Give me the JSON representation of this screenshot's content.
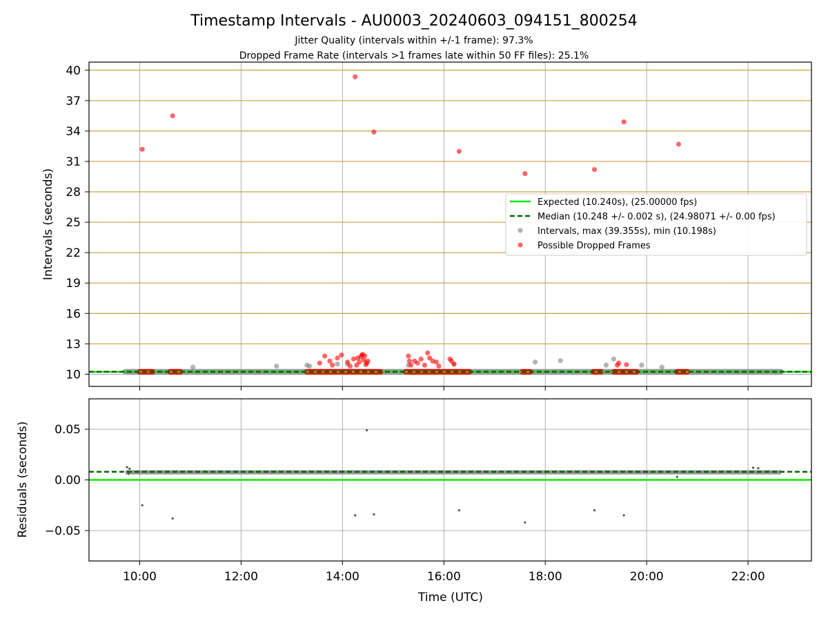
{
  "figure": {
    "title": "Timestamp Intervals - AU0003_20240603_094151_800254",
    "subtitle_1": "Jitter Quality (intervals within +/-1 frame): 97.3%",
    "subtitle_2": "Dropped Frame Rate (intervals >1 frames late within 50 FF files): 25.1%"
  },
  "colors": {
    "expected": "#00ee00",
    "median": "#006400",
    "intervals": "#808080",
    "dropped": "#ff0000",
    "hgrid_top": "#c8a040",
    "grid": "#b0b0b0"
  },
  "chart_data": [
    {
      "type": "scatter",
      "ylabel": "Intervals (seconds)",
      "xlim": [
        9.0,
        23.25
      ],
      "ylim": [
        8.8,
        40.8
      ],
      "yticks": [
        10,
        13,
        16,
        19,
        22,
        25,
        28,
        31,
        34,
        37,
        40
      ],
      "ytick_labels": [
        "10",
        "13",
        "16",
        "19",
        "22",
        "25",
        "28",
        "31",
        "34",
        "37",
        "40"
      ],
      "xgrid": true,
      "ygrid": true,
      "legend_position": "center-right",
      "expected_line": {
        "name": "Expected (10.240s), (25.00000 fps)",
        "y": 10.24
      },
      "median_line": {
        "name": "Median (10.248 +/- 0.002 s), (24.98071 +/- 0.00 fps)",
        "y": 10.248
      },
      "intervals_series": {
        "name": "Intervals, max (39.355s), min (10.198s)",
        "baseline_range": [
          9.72,
          22.65
        ],
        "baseline_y": 10.25,
        "points": [
          [
            11.05,
            10.7
          ],
          [
            12.7,
            10.8
          ],
          [
            13.3,
            10.9
          ],
          [
            13.35,
            10.8
          ],
          [
            13.9,
            11.0
          ],
          [
            14.1,
            11.0
          ],
          [
            15.3,
            10.9
          ],
          [
            16.2,
            11.0
          ],
          [
            17.8,
            11.2
          ],
          [
            18.3,
            11.35
          ],
          [
            19.2,
            10.9
          ],
          [
            19.35,
            11.5
          ],
          [
            19.9,
            10.9
          ],
          [
            20.3,
            10.7
          ]
        ]
      },
      "dropped_series": {
        "name": "Possible Dropped Frames",
        "points": [
          [
            10.05,
            32.2
          ],
          [
            10.65,
            35.5
          ],
          [
            14.25,
            39.35
          ],
          [
            14.62,
            33.9
          ],
          [
            16.3,
            32.0
          ],
          [
            17.6,
            29.8
          ],
          [
            18.97,
            30.2
          ],
          [
            19.55,
            34.9
          ],
          [
            20.63,
            32.7
          ],
          [
            13.55,
            11.1
          ],
          [
            13.65,
            11.8
          ],
          [
            13.75,
            11.3
          ],
          [
            13.8,
            10.9
          ],
          [
            13.9,
            11.6
          ],
          [
            13.98,
            11.9
          ],
          [
            14.1,
            11.2
          ],
          [
            14.15,
            10.8
          ],
          [
            14.22,
            11.5
          ],
          [
            14.28,
            10.9
          ],
          [
            14.3,
            11.6
          ],
          [
            14.33,
            11.2
          ],
          [
            14.36,
            11.7
          ],
          [
            14.38,
            11.9
          ],
          [
            14.4,
            11.95
          ],
          [
            14.42,
            11.4
          ],
          [
            14.44,
            11.8
          ],
          [
            14.46,
            10.95
          ],
          [
            14.48,
            11.1
          ],
          [
            14.5,
            11.3
          ],
          [
            15.3,
            11.8
          ],
          [
            15.32,
            11.3
          ],
          [
            15.35,
            10.9
          ],
          [
            15.42,
            11.3
          ],
          [
            15.48,
            11.1
          ],
          [
            15.55,
            11.5
          ],
          [
            15.62,
            10.9
          ],
          [
            15.68,
            12.1
          ],
          [
            15.72,
            11.6
          ],
          [
            15.78,
            11.3
          ],
          [
            15.85,
            11.2
          ],
          [
            15.9,
            10.8
          ],
          [
            16.12,
            11.5
          ],
          [
            16.15,
            11.3
          ],
          [
            16.2,
            11.0
          ],
          [
            19.42,
            10.9
          ],
          [
            19.45,
            11.1
          ],
          [
            19.6,
            10.95
          ]
        ],
        "baseline_clusters": [
          [
            10.0,
            10.25
          ],
          [
            10.6,
            10.8
          ],
          [
            13.3,
            14.75
          ],
          [
            15.25,
            16.5
          ],
          [
            17.55,
            17.7
          ],
          [
            18.95,
            19.1
          ],
          [
            19.35,
            19.8
          ],
          [
            20.6,
            20.8
          ]
        ],
        "baseline_y": 10.24
      }
    },
    {
      "type": "scatter",
      "xlabel": "Time (UTC)",
      "ylabel": "Residuals (seconds)",
      "xlim": [
        9.0,
        23.25
      ],
      "ylim": [
        -0.08,
        0.08
      ],
      "yticks": [
        -0.05,
        0.0,
        0.05
      ],
      "ytick_labels": [
        "−0.05",
        "0.00",
        "0.05"
      ],
      "xticks": [
        10,
        12,
        14,
        16,
        18,
        20,
        22
      ],
      "xtick_labels": [
        "10:00",
        "12:00",
        "14:00",
        "16:00",
        "18:00",
        "20:00",
        "22:00"
      ],
      "xgrid": true,
      "ygrid": true,
      "expected_line": {
        "y": 0.0
      },
      "median_line": {
        "y": 0.008
      },
      "residual_band": {
        "x_range": [
          9.72,
          22.65
        ],
        "y_center": 0.0075
      },
      "residual_points": [
        [
          9.75,
          0.0125
        ],
        [
          9.8,
          0.011
        ],
        [
          9.78,
          0.006
        ],
        [
          10.05,
          -0.025
        ],
        [
          10.65,
          -0.038
        ],
        [
          14.25,
          -0.035
        ],
        [
          14.48,
          0.049
        ],
        [
          14.62,
          -0.034
        ],
        [
          16.3,
          -0.03
        ],
        [
          17.6,
          -0.042
        ],
        [
          18.97,
          -0.03
        ],
        [
          19.55,
          -0.035
        ],
        [
          22.1,
          0.012
        ],
        [
          22.2,
          0.0115
        ],
        [
          20.6,
          0.003
        ]
      ]
    }
  ]
}
